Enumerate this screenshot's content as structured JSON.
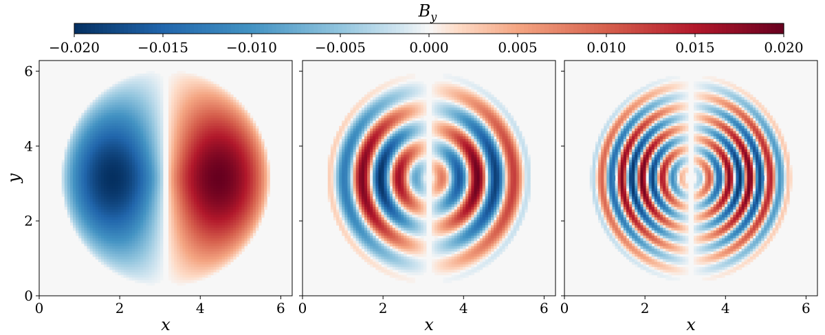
{
  "chart_data": {
    "type": "heatmap",
    "colormap": "RdBu_r",
    "colorbar": {
      "title": "B",
      "title_subscript": "y",
      "position": "top",
      "range": [
        -0.02,
        0.02
      ],
      "ticks": [
        -0.02,
        -0.015,
        -0.01,
        -0.005,
        0.0,
        0.005,
        0.01,
        0.015,
        0.02
      ],
      "tick_labels": [
        "−0.020",
        "−0.015",
        "−0.010",
        "−0.005",
        "0.000",
        "0.005",
        "0.010",
        "0.015",
        "0.020"
      ]
    },
    "panels": [
      {
        "xlabel": "x",
        "ylabel": "y",
        "xlim": [
          0,
          6.283
        ],
        "ylim": [
          0,
          6.283
        ],
        "xticks": [
          0,
          2,
          4,
          6
        ],
        "yticks": [
          0,
          2,
          4,
          6
        ],
        "xtick_labels": [
          "0",
          "2",
          "4",
          "6"
        ],
        "ytick_labels": [
          "0",
          "2",
          "4",
          "6"
        ],
        "field": {
          "amplitude": 0.02,
          "inner_radius": 0.15,
          "outer_radius": 2.9,
          "ring_frequency": 0
        }
      },
      {
        "xlabel": "x",
        "xlim": [
          0,
          6.283
        ],
        "ylim": [
          0,
          6.283
        ],
        "xticks": [
          0,
          2,
          4,
          6
        ],
        "yticks": [
          0,
          2,
          4,
          6
        ],
        "xtick_labels": [
          "0",
          "2",
          "4",
          "6"
        ],
        "field": {
          "amplitude": 0.02,
          "inner_radius": 0.3,
          "outer_radius": 2.85,
          "ring_frequency": 6
        }
      },
      {
        "xlabel": "x",
        "xlim": [
          0,
          6.283
        ],
        "ylim": [
          0,
          6.283
        ],
        "xticks": [
          0,
          2,
          4,
          6
        ],
        "yticks": [
          0,
          2,
          4,
          6
        ],
        "xtick_labels": [
          "0",
          "2",
          "4",
          "6"
        ],
        "field": {
          "amplitude": 0.02,
          "inner_radius": 0.5,
          "outer_radius": 2.8,
          "ring_frequency": 11
        }
      }
    ]
  }
}
